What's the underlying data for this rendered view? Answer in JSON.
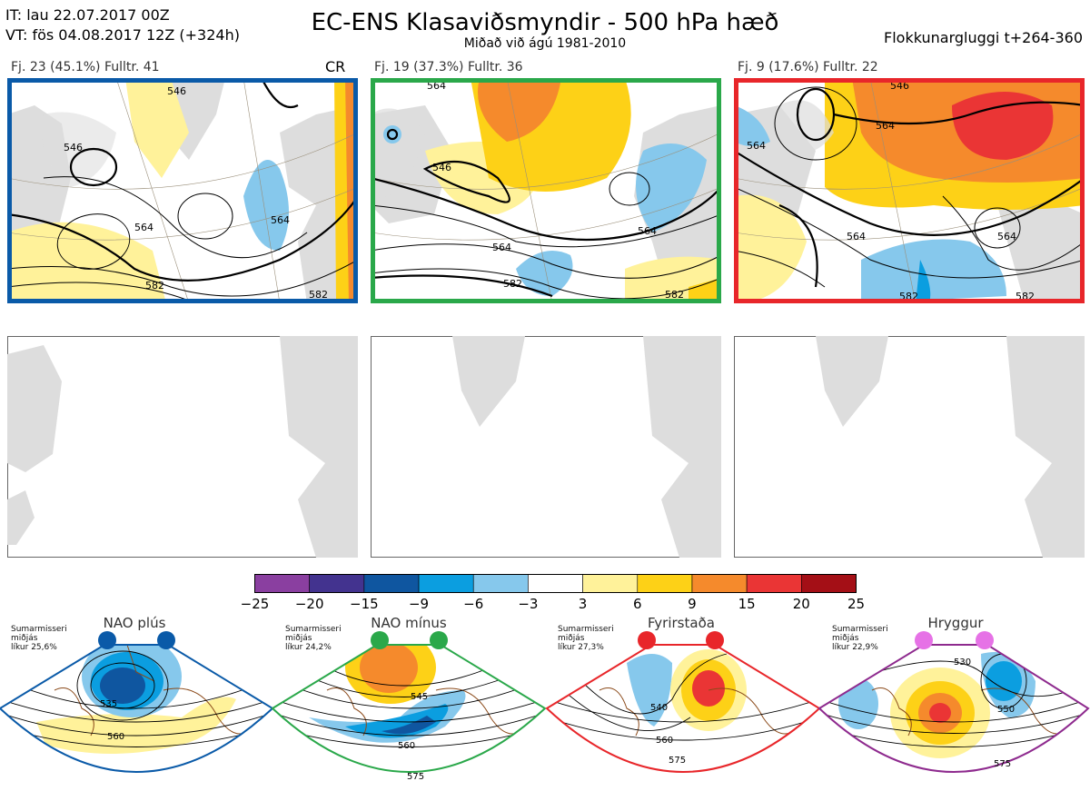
{
  "header": {
    "it_line": "IT: lau 22.07.2017 00Z",
    "vt_line": "VT: fös 04.08.2017 12Z  (+324h)",
    "title": "EC-ENS Klasaviðsmyndir - 500 hPa hæð",
    "subtitle": "Miðað við ágú 1981-2010",
    "window": "Flokkunargluggi t+264-360"
  },
  "clusters": [
    {
      "label": "Fj. 23 (45.1%)   Fulltr. 41",
      "border_color": "#0a5aa8",
      "flag": "CR",
      "contours": [
        "546",
        "564",
        "582",
        "546",
        "564",
        "582"
      ]
    },
    {
      "label": "Fj. 19 (37.3%)   Fulltr. 36",
      "border_color": "#2aa84a",
      "contours": [
        "564",
        "546",
        "564",
        "582",
        "564",
        "582"
      ]
    },
    {
      "label": "Fj. 9 (17.6%)   Fulltr. 22",
      "border_color": "#e8262a",
      "contours": [
        "564",
        "564",
        "564",
        "582",
        "564",
        "582",
        "546"
      ]
    }
  ],
  "colorbar": {
    "ticks": [
      "−25",
      "−20",
      "−15",
      "−9",
      "−6",
      "−3",
      "3",
      "6",
      "9",
      "15",
      "20",
      "25"
    ],
    "colors": [
      "#8a3fa0",
      "#43338f",
      "#0f56a0",
      "#0b9ee0",
      "#86c8ec",
      "#ffffff",
      "#fff29a",
      "#fdd117",
      "#f58a2c",
      "#ea3535",
      "#a40f16"
    ]
  },
  "regimes": [
    {
      "name": "NAO plús",
      "info": [
        "Sumarmisseri",
        "miðjás",
        "líkur 25,6%"
      ],
      "color": "#0a5aa8",
      "contours": [
        "535",
        "560"
      ]
    },
    {
      "name": "NAO mínus",
      "info": [
        "Sumarmisseri",
        "miðjás",
        "líkur 24,2%"
      ],
      "color": "#2aa84a",
      "contours": [
        "545",
        "560",
        "575"
      ]
    },
    {
      "name": "Fyrirstaða",
      "info": [
        "Sumarmisseri",
        "miðjás",
        "líkur 27,3%"
      ],
      "color": "#e8262a",
      "contours": [
        "540",
        "560",
        "575"
      ]
    },
    {
      "name": "Hryggur",
      "info": [
        "Sumarmisseri",
        "miðjás",
        "líkur 22,9%"
      ],
      "color": "#e672e6",
      "line_color": "#8e2a8e",
      "contours": [
        "530",
        "550",
        "575"
      ]
    }
  ]
}
